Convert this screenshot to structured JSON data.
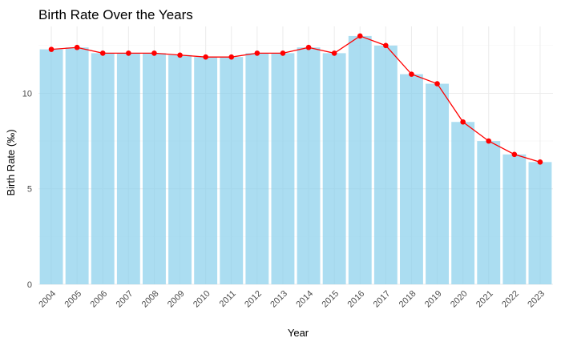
{
  "chart_data": {
    "type": "bar",
    "title": "Birth Rate Over the Years",
    "xlabel": "Year",
    "ylabel": "Birth Rate (‰)",
    "categories": [
      "2004",
      "2005",
      "2006",
      "2007",
      "2008",
      "2009",
      "2010",
      "2011",
      "2012",
      "2013",
      "2014",
      "2015",
      "2016",
      "2017",
      "2018",
      "2019",
      "2020",
      "2021",
      "2022",
      "2023"
    ],
    "values": [
      12.3,
      12.4,
      12.1,
      12.1,
      12.1,
      12.0,
      11.9,
      11.9,
      12.1,
      12.1,
      12.4,
      12.1,
      13.0,
      12.5,
      11.0,
      10.5,
      8.5,
      7.5,
      6.8,
      6.4
    ],
    "ylim": [
      0,
      13.5
    ],
    "yticks": [
      0,
      5,
      10
    ],
    "grid": true,
    "legend": "none",
    "series": [
      {
        "type": "bar",
        "values": [
          12.3,
          12.4,
          12.1,
          12.1,
          12.1,
          12.0,
          11.9,
          11.9,
          12.1,
          12.1,
          12.4,
          12.1,
          13.0,
          12.5,
          11.0,
          10.5,
          8.5,
          7.5,
          6.8,
          6.4
        ],
        "color": "#87ceeb"
      },
      {
        "type": "line",
        "values": [
          12.3,
          12.4,
          12.1,
          12.1,
          12.1,
          12.0,
          11.9,
          11.9,
          12.1,
          12.1,
          12.4,
          12.1,
          13.0,
          12.5,
          11.0,
          10.5,
          8.5,
          7.5,
          6.8,
          6.4
        ],
        "color": "#ff0000"
      }
    ],
    "colors": {
      "bar": "#87ceeb",
      "line": "#ff0000",
      "grid": "#ebebeb"
    }
  }
}
